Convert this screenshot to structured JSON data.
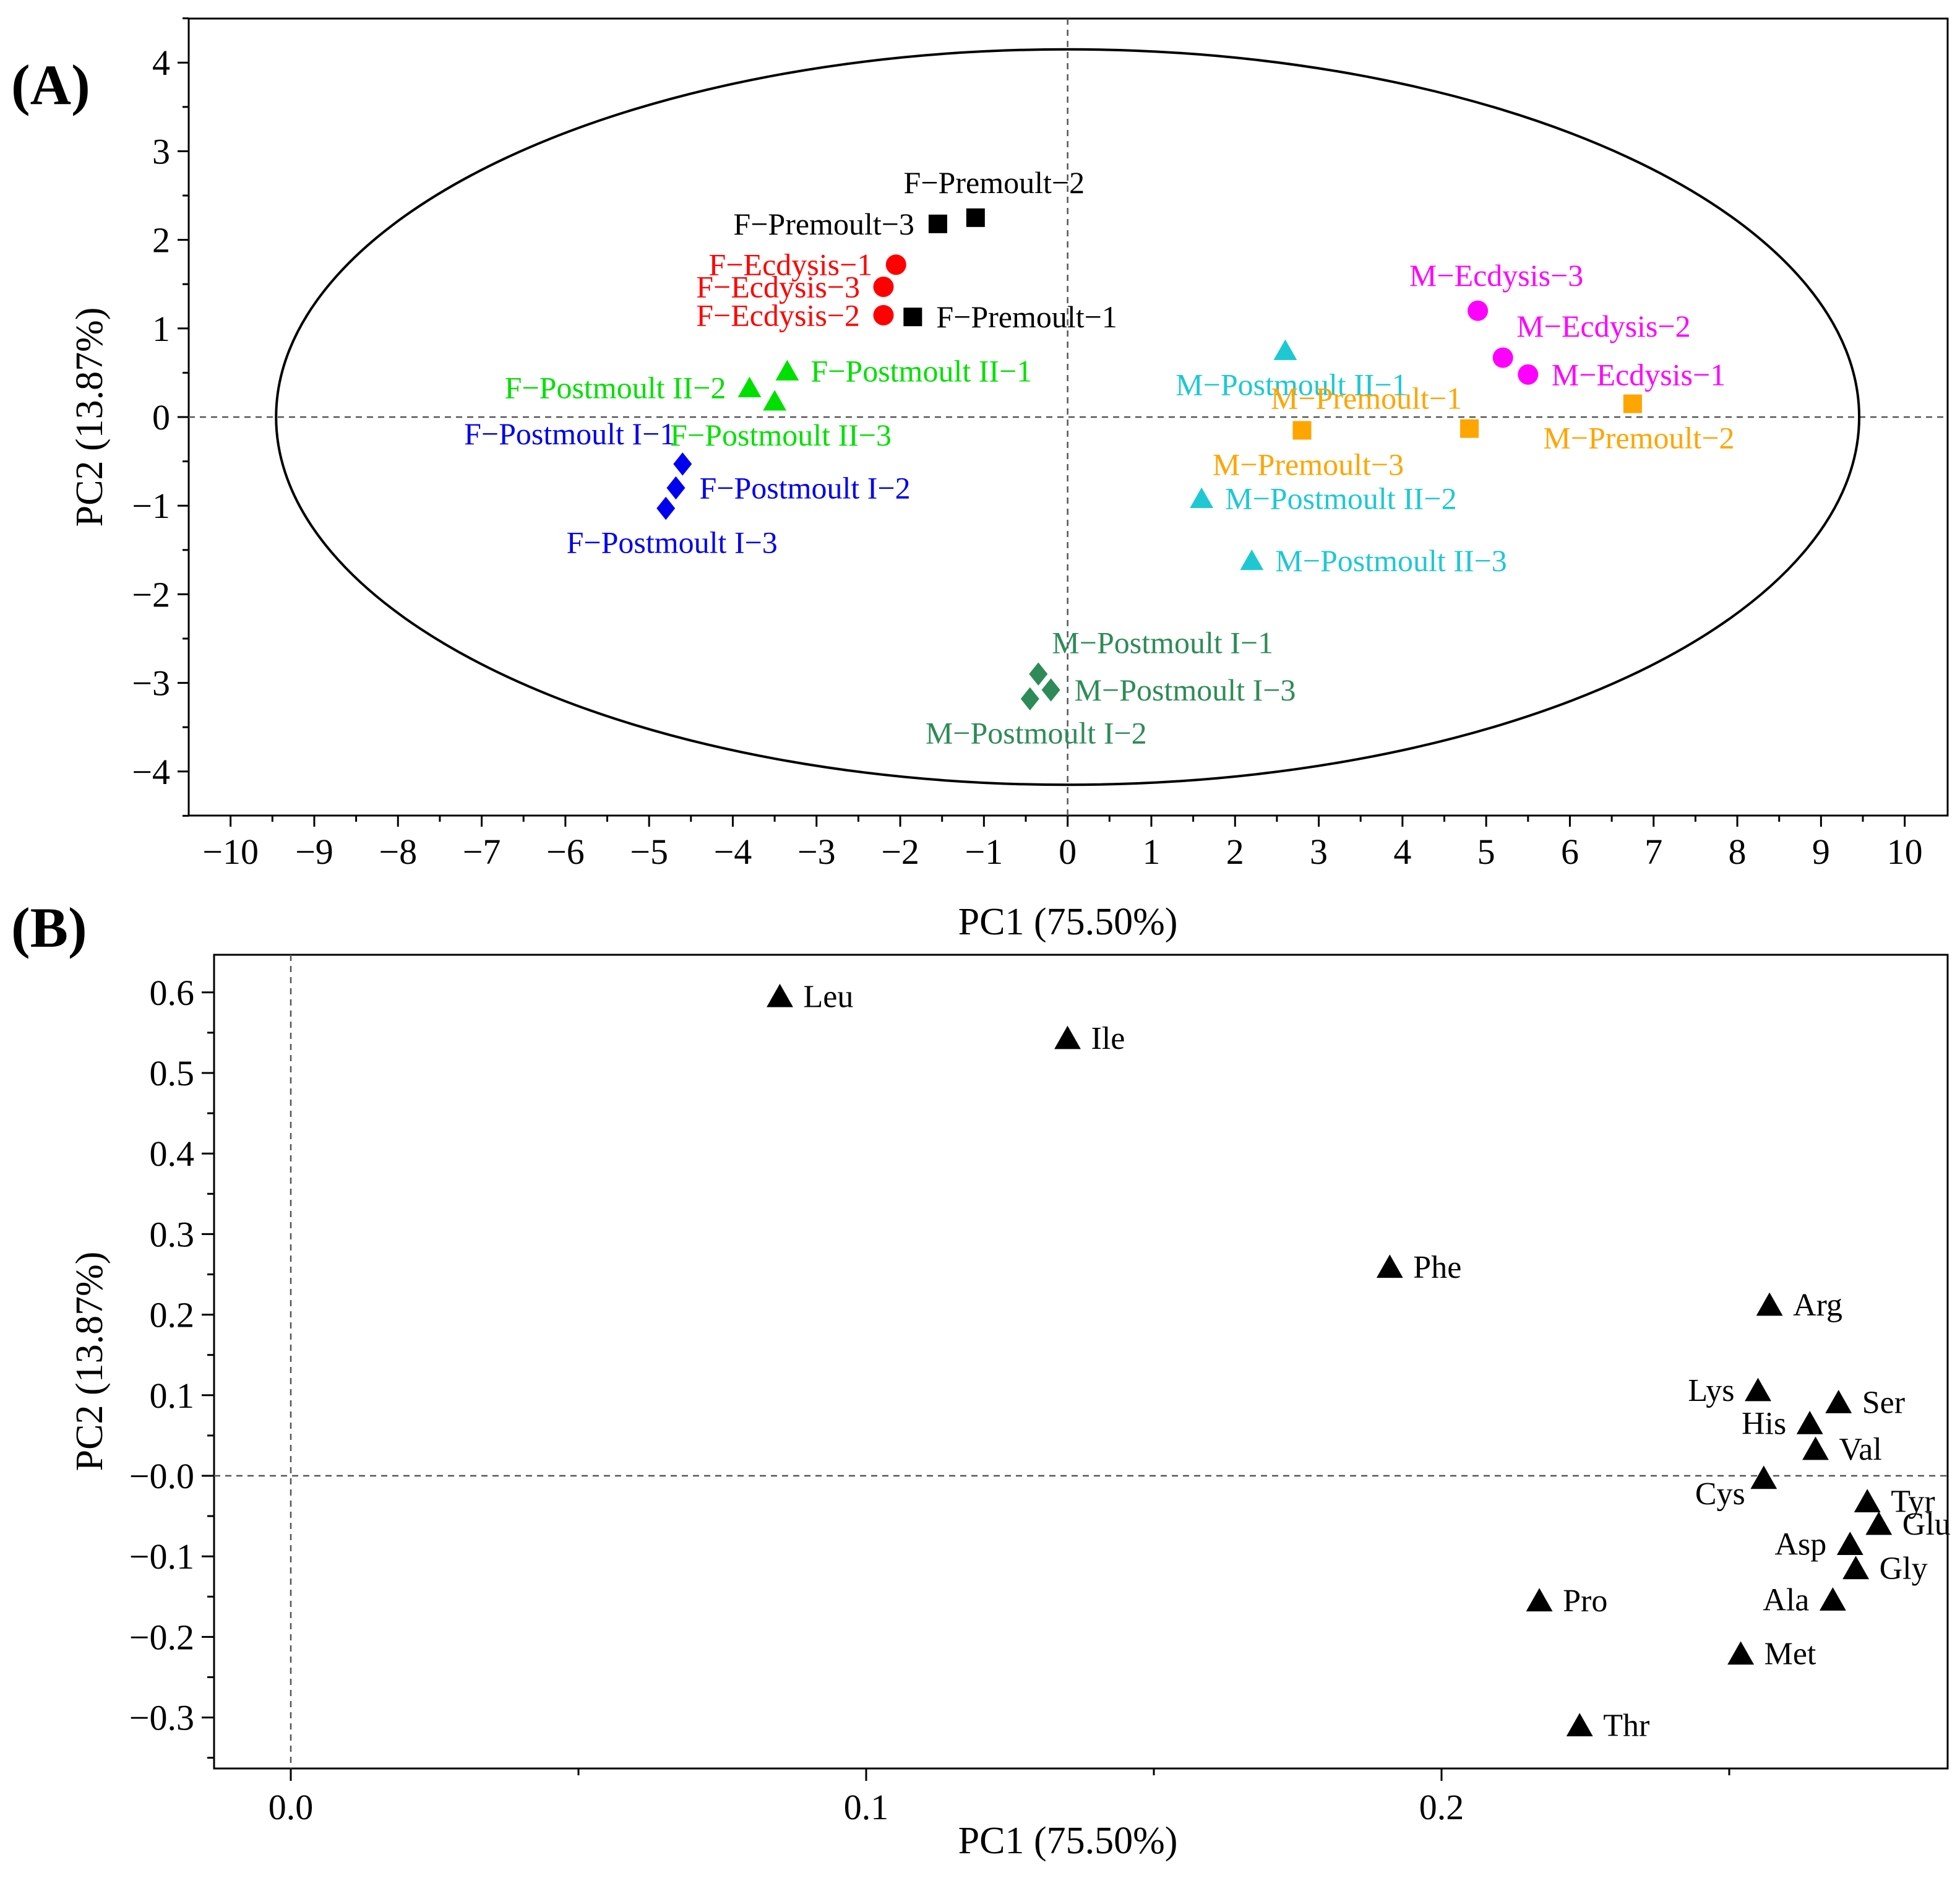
{
  "colors": {
    "black": "#000000",
    "red": "#ff0000",
    "green": "#00e000",
    "blue": "#0000ee",
    "cyan": "#1ec8d2",
    "magenta": "#ff00ff",
    "orange": "#ffa500",
    "darkgreen": "#2e8b57"
  },
  "chart_data": [
    {
      "panel_label": "(A)",
      "type": "scatter",
      "title": "",
      "xlabel": "PC1 (75.50%)",
      "ylabel": "PC2 (13.87%)",
      "xlim": [
        -10.5,
        10.5
      ],
      "ylim": [
        -4.5,
        4.5
      ],
      "xticks": [
        "−10",
        "−9",
        "−8",
        "−7",
        "−6",
        "−5",
        "−4",
        "−3",
        "−2",
        "−1",
        "0",
        "1",
        "2",
        "3",
        "4",
        "5",
        "6",
        "7",
        "8",
        "9",
        "10"
      ],
      "yticks": [
        "4",
        "3",
        "2",
        "1",
        "0",
        "−1",
        "−2",
        "−3",
        "−4"
      ],
      "ellipse": {
        "cx": 0,
        "cy": 0,
        "rx": 9.6,
        "ry": 4.15
      },
      "points": [
        {
          "label": "F−Premoult−2",
          "x": -1.1,
          "y": 2.25,
          "shape": "square",
          "color": "black",
          "anchor": "above"
        },
        {
          "label": "F−Premoult−3",
          "x": -1.55,
          "y": 2.18,
          "shape": "square",
          "color": "black",
          "anchor": "left"
        },
        {
          "label": "F−Premoult−1",
          "x": -1.85,
          "y": 1.13,
          "shape": "square",
          "color": "black",
          "anchor": "right"
        },
        {
          "label": "F−Ecdysis−1",
          "x": -2.05,
          "y": 1.72,
          "shape": "circle",
          "color": "red",
          "anchor": "left"
        },
        {
          "label": "F−Ecdysis−3",
          "x": -2.2,
          "y": 1.47,
          "shape": "circle",
          "color": "red",
          "anchor": "left"
        },
        {
          "label": "F−Ecdysis−2",
          "x": -2.2,
          "y": 1.15,
          "shape": "circle",
          "color": "red",
          "anchor": "left"
        },
        {
          "label": "F−Postmoult II−1",
          "x": -3.35,
          "y": 0.52,
          "shape": "triangle",
          "color": "green",
          "anchor": "right"
        },
        {
          "label": "F−Postmoult II−2",
          "x": -3.8,
          "y": 0.33,
          "shape": "triangle",
          "color": "green",
          "anchor": "left"
        },
        {
          "label": "F−Postmoult II−3",
          "x": -3.5,
          "y": 0.18,
          "shape": "triangle",
          "color": "green",
          "anchor": "below"
        },
        {
          "label": "F−Postmoult I−1",
          "x": -4.6,
          "y": -0.53,
          "shape": "diamond",
          "color": "blue",
          "anchor": "aboveleft"
        },
        {
          "label": "F−Postmoult I−2",
          "x": -4.68,
          "y": -0.8,
          "shape": "diamond",
          "color": "blue",
          "anchor": "right"
        },
        {
          "label": "F−Postmoult I−3",
          "x": -4.8,
          "y": -1.03,
          "shape": "diamond",
          "color": "blue",
          "anchor": "below"
        },
        {
          "label": "M−Ecdysis−3",
          "x": 4.9,
          "y": 1.2,
          "shape": "circle",
          "color": "magenta",
          "anchor": "above"
        },
        {
          "label": "M−Ecdysis−2",
          "x": 5.2,
          "y": 0.67,
          "shape": "circle",
          "color": "magenta",
          "anchor": "aboveright"
        },
        {
          "label": "M−Ecdysis−1",
          "x": 5.5,
          "y": 0.48,
          "shape": "circle",
          "color": "magenta",
          "anchor": "right"
        },
        {
          "label": "M−Postmoult II−1",
          "x": 2.6,
          "y": 0.75,
          "shape": "triangle",
          "color": "cyan",
          "anchor": "below"
        },
        {
          "label": "M−Postmoult II−2",
          "x": 1.6,
          "y": -0.92,
          "shape": "triangle",
          "color": "cyan",
          "anchor": "right"
        },
        {
          "label": "M−Postmoult II−3",
          "x": 2.2,
          "y": -1.62,
          "shape": "triangle",
          "color": "cyan",
          "anchor": "right"
        },
        {
          "label": "M−Premoult−1",
          "x": 4.8,
          "y": -0.13,
          "shape": "square",
          "color": "orange",
          "anchor": "aboveleft"
        },
        {
          "label": "M−Premoult−2",
          "x": 6.75,
          "y": 0.15,
          "shape": "square",
          "color": "orange",
          "anchor": "below"
        },
        {
          "label": "M−Premoult−3",
          "x": 2.8,
          "y": -0.15,
          "shape": "square",
          "color": "orange",
          "anchor": "below"
        },
        {
          "label": "M−Postmoult I−1",
          "x": -0.35,
          "y": -2.9,
          "shape": "diamond",
          "color": "darkgreen",
          "anchor": "aboveright"
        },
        {
          "label": "M−Postmoult I−3",
          "x": -0.2,
          "y": -3.08,
          "shape": "diamond",
          "color": "darkgreen",
          "anchor": "right"
        },
        {
          "label": "M−Postmoult I−2",
          "x": -0.45,
          "y": -3.18,
          "shape": "diamond",
          "color": "darkgreen",
          "anchor": "below"
        }
      ]
    },
    {
      "panel_label": "(B)",
      "type": "scatter",
      "title": "",
      "xlabel": "PC1 (75.50%)",
      "ylabel": "PC2 (13.87%)",
      "xlim": [
        -0.013,
        0.288
      ],
      "ylim": [
        -0.355,
        0.655
      ],
      "xticks": [
        "0.0",
        "0.1",
        "0.2"
      ],
      "yticks": [
        "0.6",
        "0.5",
        "0.4",
        "0.3",
        "0.2",
        "0.1",
        "−0.0",
        "−0.1",
        "−0.2",
        "−0.3"
      ],
      "points": [
        {
          "label": "Leu",
          "x": 0.085,
          "y": 0.595,
          "anchor": "right"
        },
        {
          "label": "Ile",
          "x": 0.135,
          "y": 0.543,
          "anchor": "right"
        },
        {
          "label": "Phe",
          "x": 0.191,
          "y": 0.259,
          "anchor": "right"
        },
        {
          "label": "Arg",
          "x": 0.257,
          "y": 0.212,
          "anchor": "right"
        },
        {
          "label": "Lys",
          "x": 0.255,
          "y": 0.106,
          "anchor": "left"
        },
        {
          "label": "Ser",
          "x": 0.269,
          "y": 0.091,
          "anchor": "right"
        },
        {
          "label": "His",
          "x": 0.264,
          "y": 0.065,
          "anchor": "left"
        },
        {
          "label": "Val",
          "x": 0.265,
          "y": 0.033,
          "anchor": "right"
        },
        {
          "label": "Cys",
          "x": 0.256,
          "y": -0.003,
          "anchor": "leftbelow"
        },
        {
          "label": "Tyr",
          "x": 0.274,
          "y": -0.032,
          "anchor": "right"
        },
        {
          "label": "Glu",
          "x": 0.276,
          "y": -0.06,
          "anchor": "right"
        },
        {
          "label": "Asp",
          "x": 0.271,
          "y": -0.085,
          "anchor": "left"
        },
        {
          "label": "Gly",
          "x": 0.272,
          "y": -0.115,
          "anchor": "right"
        },
        {
          "label": "Ala",
          "x": 0.268,
          "y": -0.154,
          "anchor": "left"
        },
        {
          "label": "Pro",
          "x": 0.217,
          "y": -0.155,
          "anchor": "right"
        },
        {
          "label": "Met",
          "x": 0.252,
          "y": -0.221,
          "anchor": "right"
        },
        {
          "label": "Thr",
          "x": 0.224,
          "y": -0.31,
          "anchor": "right"
        }
      ]
    }
  ]
}
